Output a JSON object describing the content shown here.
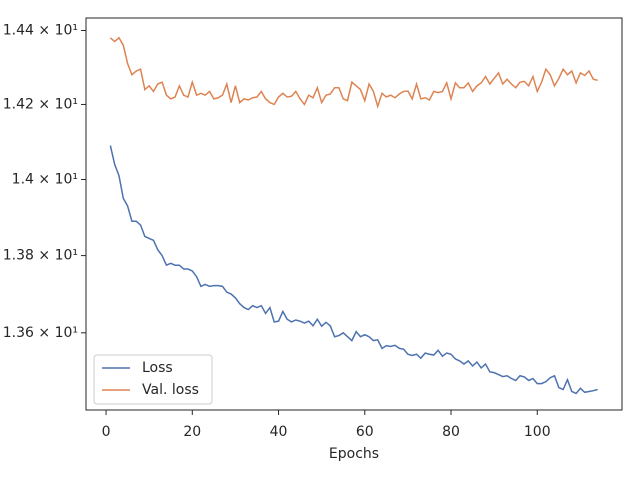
{
  "chart_data": {
    "type": "line",
    "x_label": "Epochs",
    "log_y": true,
    "legend": "lower left",
    "x": [
      1,
      2,
      3,
      4,
      5,
      6,
      7,
      8,
      9,
      10,
      11,
      12,
      13,
      14,
      15,
      16,
      17,
      18,
      19,
      20,
      21,
      22,
      23,
      24,
      25,
      26,
      27,
      28,
      29,
      30,
      31,
      32,
      33,
      34,
      35,
      36,
      37,
      38,
      39,
      40,
      41,
      42,
      43,
      44,
      45,
      46,
      47,
      48,
      49,
      50,
      51,
      52,
      53,
      54,
      55,
      56,
      57,
      58,
      59,
      60,
      61,
      62,
      63,
      64,
      65,
      66,
      67,
      68,
      69,
      70,
      71,
      72,
      73,
      74,
      75,
      76,
      77,
      78,
      79,
      80,
      81,
      82,
      83,
      84,
      85,
      86,
      87,
      88,
      89,
      90,
      91,
      92,
      93,
      94,
      95,
      96,
      97,
      98,
      99,
      100,
      101,
      102,
      103,
      104,
      105,
      106,
      107,
      108,
      109,
      110,
      111,
      112,
      113,
      114
    ],
    "series": [
      {
        "name": "Loss",
        "color": "#4c72b0",
        "values": [
          14.09,
          14.04,
          14.01,
          13.95,
          13.93,
          13.89,
          13.89,
          13.88,
          13.85,
          13.845,
          13.84,
          13.815,
          13.8,
          13.775,
          13.78,
          13.775,
          13.775,
          13.765,
          13.765,
          13.76,
          13.745,
          13.72,
          13.725,
          13.72,
          13.722,
          13.722,
          13.72,
          13.705,
          13.7,
          13.69,
          13.675,
          13.665,
          13.66,
          13.67,
          13.665,
          13.67,
          13.65,
          13.665,
          13.628,
          13.63,
          13.655,
          13.635,
          13.628,
          13.633,
          13.63,
          13.625,
          13.63,
          13.618,
          13.635,
          13.617,
          13.627,
          13.618,
          13.59,
          13.593,
          13.6,
          13.59,
          13.58,
          13.603,
          13.59,
          13.595,
          13.59,
          13.58,
          13.582,
          13.56,
          13.567,
          13.565,
          13.568,
          13.56,
          13.558,
          13.545,
          13.542,
          13.545,
          13.535,
          13.548,
          13.545,
          13.543,
          13.555,
          13.54,
          13.548,
          13.545,
          13.533,
          13.528,
          13.52,
          13.528,
          13.515,
          13.525,
          13.51,
          13.52,
          13.5,
          13.498,
          13.493,
          13.488,
          13.49,
          13.483,
          13.478,
          13.49,
          13.487,
          13.478,
          13.483,
          13.47,
          13.47,
          13.475,
          13.485,
          13.49,
          13.46,
          13.455,
          13.48,
          13.45,
          13.445,
          13.458,
          13.448,
          13.45,
          13.452,
          13.455
        ]
      },
      {
        "name": "Val. loss",
        "color": "#dd8452",
        "values": [
          14.38,
          14.37,
          14.38,
          14.36,
          14.31,
          14.28,
          14.29,
          14.295,
          14.24,
          14.25,
          14.235,
          14.255,
          14.26,
          14.225,
          14.215,
          14.22,
          14.25,
          14.225,
          14.22,
          14.26,
          14.225,
          14.23,
          14.225,
          14.235,
          14.215,
          14.218,
          14.225,
          14.255,
          14.205,
          14.25,
          14.205,
          14.215,
          14.212,
          14.218,
          14.22,
          14.235,
          14.215,
          14.205,
          14.2,
          14.22,
          14.23,
          14.22,
          14.222,
          14.235,
          14.215,
          14.2,
          14.225,
          14.218,
          14.245,
          14.205,
          14.225,
          14.228,
          14.245,
          14.245,
          14.215,
          14.21,
          14.26,
          14.25,
          14.24,
          14.21,
          14.255,
          14.235,
          14.195,
          14.23,
          14.22,
          14.225,
          14.218,
          14.228,
          14.235,
          14.236,
          14.215,
          14.255,
          14.215,
          14.218,
          14.212,
          14.235,
          14.232,
          14.235,
          14.258,
          14.215,
          14.258,
          14.245,
          14.245,
          14.258,
          14.235,
          14.25,
          14.258,
          14.275,
          14.255,
          14.27,
          14.285,
          14.255,
          14.268,
          14.255,
          14.245,
          14.26,
          14.262,
          14.25,
          14.275,
          14.235,
          14.26,
          14.295,
          14.28,
          14.25,
          14.27,
          14.295,
          14.28,
          14.29,
          14.258,
          14.285,
          14.278,
          14.29,
          14.268,
          14.265
        ]
      }
    ],
    "xlim": [
      -4.65,
      119.65
    ],
    "xticks": [
      0,
      20,
      40,
      60,
      80,
      100
    ],
    "ylim": [
      13.403,
      14.434
    ],
    "yticks": [
      {
        "value": 13.6,
        "label": "1.36 × 10¹"
      },
      {
        "value": 13.8,
        "label": "1.38 × 10¹"
      },
      {
        "value": 14.0,
        "label": "1.4 × 10¹"
      },
      {
        "value": 14.2,
        "label": "1.42 × 10¹"
      },
      {
        "value": 14.4,
        "label": "1.44 × 10¹"
      }
    ]
  }
}
